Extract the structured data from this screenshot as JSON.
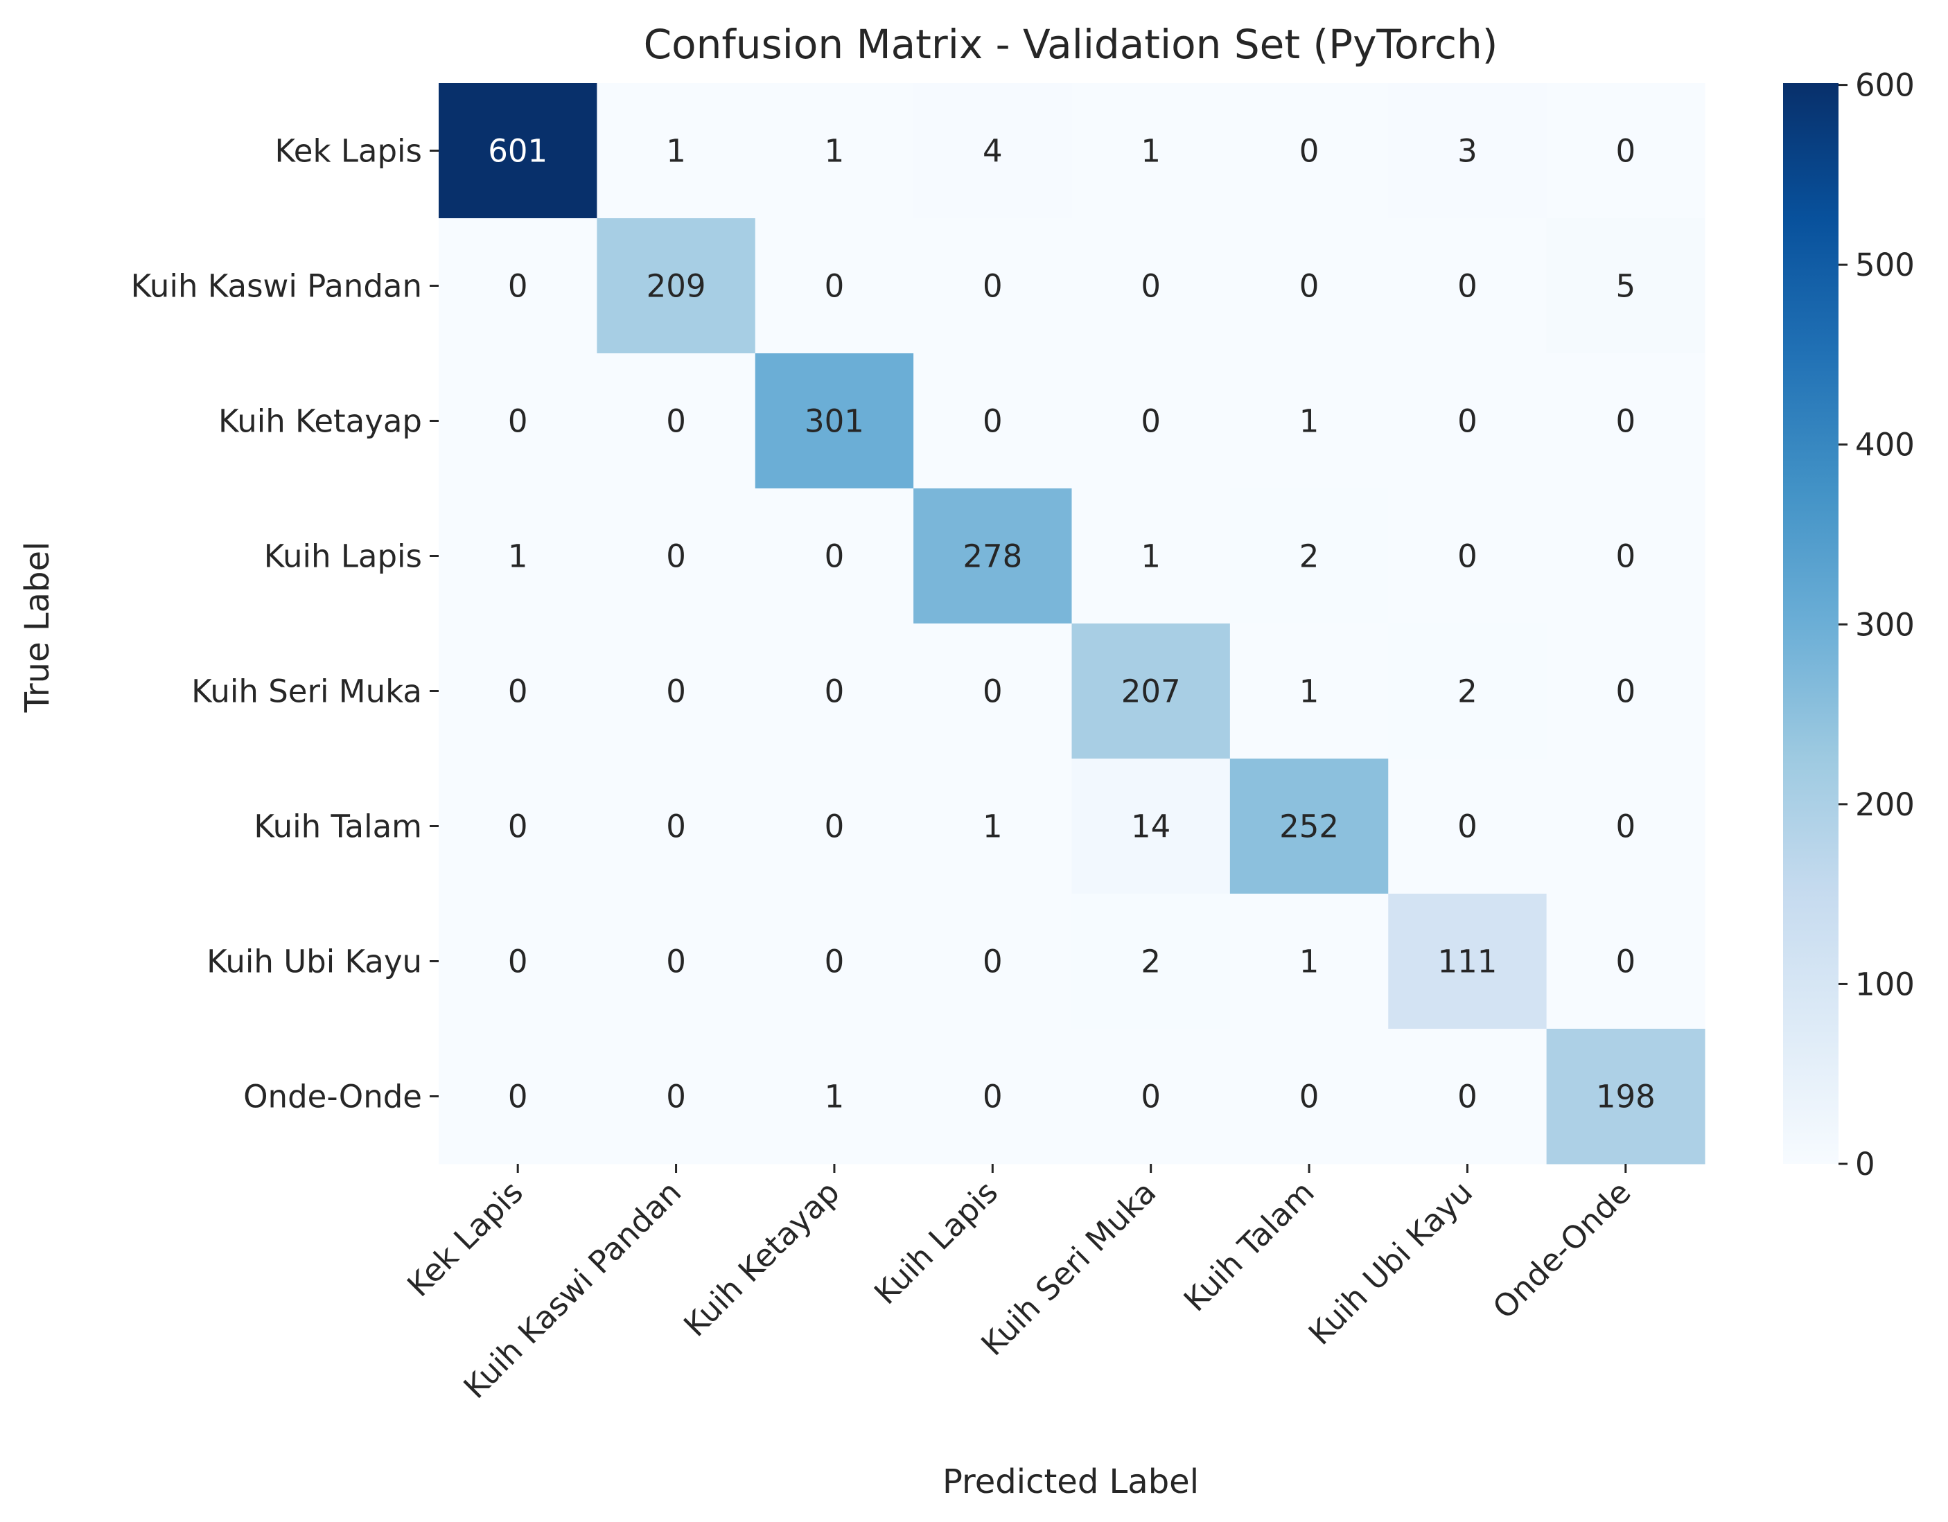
{
  "chart_data": {
    "type": "heatmap",
    "title": "Confusion Matrix - Validation Set (PyTorch)",
    "xlabel": "Predicted Label",
    "ylabel": "True Label",
    "x_categories": [
      "Kek Lapis",
      "Kuih Kaswi Pandan",
      "Kuih Ketayap",
      "Kuih Lapis",
      "Kuih Seri Muka",
      "Kuih Talam",
      "Kuih Ubi Kayu",
      "Onde-Onde"
    ],
    "y_categories": [
      "Kek Lapis",
      "Kuih Kaswi Pandan",
      "Kuih Ketayap",
      "Kuih Lapis",
      "Kuih Seri Muka",
      "Kuih Talam",
      "Kuih Ubi Kayu",
      "Onde-Onde"
    ],
    "values": [
      [
        601,
        1,
        1,
        4,
        1,
        0,
        3,
        0
      ],
      [
        0,
        209,
        0,
        0,
        0,
        0,
        0,
        5
      ],
      [
        0,
        0,
        301,
        0,
        0,
        1,
        0,
        0
      ],
      [
        1,
        0,
        0,
        278,
        1,
        2,
        0,
        0
      ],
      [
        0,
        0,
        0,
        0,
        207,
        1,
        2,
        0
      ],
      [
        0,
        0,
        0,
        1,
        14,
        252,
        0,
        0
      ],
      [
        0,
        0,
        0,
        0,
        2,
        1,
        111,
        0
      ],
      [
        0,
        0,
        1,
        0,
        0,
        0,
        0,
        198
      ]
    ],
    "colorbar": {
      "colormap": "Blues",
      "vmin": 0,
      "vmax": 601,
      "ticks": [
        0,
        100,
        200,
        300,
        400,
        500,
        600
      ]
    },
    "annotation_colors": {
      "dark": "#262626",
      "light": "#ffffff"
    },
    "grid": false
  }
}
